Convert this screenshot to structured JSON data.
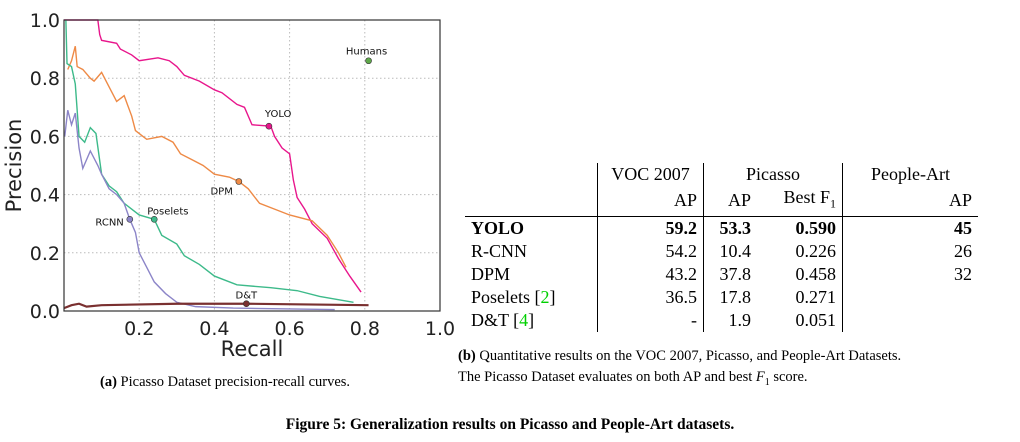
{
  "chart_data": {
    "type": "line",
    "xlabel": "Recall",
    "ylabel": "Precision",
    "xlim": [
      0,
      1.0
    ],
    "ylim": [
      0,
      1.0
    ],
    "xticks": [
      "0.2",
      "0.4",
      "0.6",
      "0.8",
      "1.0"
    ],
    "yticks": [
      "0.0",
      "0.2",
      "0.4",
      "0.6",
      "0.8",
      "1.0"
    ],
    "grid": true,
    "series": [
      {
        "name": "YOLO",
        "color": "#e8168c",
        "marker": [
          0.545,
          0.635
        ],
        "points": [
          [
            0.0,
            1.0
          ],
          [
            0.09,
            1.0
          ],
          [
            0.095,
            0.95
          ],
          [
            0.1,
            0.93
          ],
          [
            0.14,
            0.92
          ],
          [
            0.15,
            0.9
          ],
          [
            0.18,
            0.88
          ],
          [
            0.2,
            0.86
          ],
          [
            0.25,
            0.87
          ],
          [
            0.28,
            0.86
          ],
          [
            0.3,
            0.84
          ],
          [
            0.32,
            0.81
          ],
          [
            0.36,
            0.79
          ],
          [
            0.4,
            0.76
          ],
          [
            0.42,
            0.75
          ],
          [
            0.46,
            0.71
          ],
          [
            0.48,
            0.7
          ],
          [
            0.5,
            0.64
          ],
          [
            0.55,
            0.635
          ],
          [
            0.56,
            0.6
          ],
          [
            0.58,
            0.56
          ],
          [
            0.6,
            0.54
          ],
          [
            0.61,
            0.45
          ],
          [
            0.62,
            0.39
          ],
          [
            0.64,
            0.35
          ],
          [
            0.66,
            0.3
          ],
          [
            0.7,
            0.25
          ],
          [
            0.73,
            0.18
          ],
          [
            0.76,
            0.12
          ],
          [
            0.79,
            0.065
          ]
        ]
      },
      {
        "name": "DPM",
        "color": "#ee8a46",
        "marker": [
          0.465,
          0.445
        ],
        "points": [
          [
            0.01,
            0.83
          ],
          [
            0.02,
            0.86
          ],
          [
            0.03,
            0.91
          ],
          [
            0.035,
            0.84
          ],
          [
            0.05,
            0.83
          ],
          [
            0.07,
            0.8
          ],
          [
            0.08,
            0.79
          ],
          [
            0.1,
            0.82
          ],
          [
            0.12,
            0.77
          ],
          [
            0.14,
            0.72
          ],
          [
            0.16,
            0.74
          ],
          [
            0.18,
            0.67
          ],
          [
            0.19,
            0.62
          ],
          [
            0.21,
            0.6
          ],
          [
            0.22,
            0.59
          ],
          [
            0.26,
            0.6
          ],
          [
            0.29,
            0.58
          ],
          [
            0.31,
            0.54
          ],
          [
            0.34,
            0.52
          ],
          [
            0.37,
            0.5
          ],
          [
            0.4,
            0.47
          ],
          [
            0.44,
            0.46
          ],
          [
            0.465,
            0.445
          ],
          [
            0.49,
            0.42
          ],
          [
            0.52,
            0.37
          ],
          [
            0.56,
            0.35
          ],
          [
            0.6,
            0.33
          ],
          [
            0.66,
            0.31
          ],
          [
            0.7,
            0.26
          ],
          [
            0.73,
            0.2
          ],
          [
            0.75,
            0.15
          ]
        ]
      },
      {
        "name": "Poselets",
        "color": "#3dba8a",
        "marker": [
          0.24,
          0.315
        ],
        "points": [
          [
            0.005,
            1.0
          ],
          [
            0.008,
            0.85
          ],
          [
            0.02,
            0.84
          ],
          [
            0.03,
            0.78
          ],
          [
            0.04,
            0.6
          ],
          [
            0.055,
            0.58
          ],
          [
            0.07,
            0.63
          ],
          [
            0.085,
            0.61
          ],
          [
            0.1,
            0.47
          ],
          [
            0.12,
            0.43
          ],
          [
            0.14,
            0.41
          ],
          [
            0.16,
            0.37
          ],
          [
            0.2,
            0.33
          ],
          [
            0.24,
            0.315
          ],
          [
            0.26,
            0.26
          ],
          [
            0.3,
            0.23
          ],
          [
            0.32,
            0.19
          ],
          [
            0.36,
            0.16
          ],
          [
            0.4,
            0.12
          ],
          [
            0.46,
            0.09
          ],
          [
            0.55,
            0.08
          ],
          [
            0.62,
            0.07
          ],
          [
            0.68,
            0.05
          ],
          [
            0.77,
            0.03
          ]
        ]
      },
      {
        "name": "RCNN",
        "color": "#8c85c8",
        "marker": [
          0.175,
          0.315
        ],
        "points": [
          [
            0.002,
            0.6
          ],
          [
            0.01,
            0.69
          ],
          [
            0.02,
            0.64
          ],
          [
            0.03,
            0.68
          ],
          [
            0.04,
            0.56
          ],
          [
            0.05,
            0.49
          ],
          [
            0.07,
            0.55
          ],
          [
            0.09,
            0.5
          ],
          [
            0.1,
            0.47
          ],
          [
            0.12,
            0.42
          ],
          [
            0.14,
            0.4
          ],
          [
            0.16,
            0.37
          ],
          [
            0.175,
            0.315
          ],
          [
            0.19,
            0.27
          ],
          [
            0.2,
            0.2
          ],
          [
            0.22,
            0.15
          ],
          [
            0.24,
            0.1
          ],
          [
            0.27,
            0.06
          ],
          [
            0.3,
            0.03
          ],
          [
            0.35,
            0.015
          ],
          [
            0.45,
            0.01
          ],
          [
            0.72,
            0.005
          ]
        ]
      },
      {
        "name": "D&T",
        "color": "#7a3030",
        "marker": [
          0.485,
          0.025
        ],
        "points": [
          [
            0.0,
            0.01
          ],
          [
            0.02,
            0.02
          ],
          [
            0.04,
            0.025
          ],
          [
            0.06,
            0.015
          ],
          [
            0.1,
            0.02
          ],
          [
            0.3,
            0.025
          ],
          [
            0.49,
            0.025
          ],
          [
            0.81,
            0.02
          ]
        ]
      }
    ],
    "points": [
      {
        "name": "Humans",
        "color": "#5fa84a",
        "value": [
          0.81,
          0.86
        ]
      }
    ]
  },
  "table": {
    "groups": [
      "VOC 2007",
      "Picasso",
      "People-Art"
    ],
    "subheaders": [
      "AP",
      "AP",
      "Best F",
      "1",
      "AP"
    ],
    "rows": [
      {
        "method": "YOLO",
        "cite": "",
        "voc": "59.2",
        "pap": "53.3",
        "f1": "0.590",
        "art": "45",
        "bold": true
      },
      {
        "method": "R-CNN",
        "cite": "",
        "voc": "54.2",
        "pap": "10.4",
        "f1": "0.226",
        "art": "26"
      },
      {
        "method": "DPM",
        "cite": "",
        "voc": "43.2",
        "pap": "37.8",
        "f1": "0.458",
        "art": "32"
      },
      {
        "method": "Poselets [",
        "cite": "2",
        "voc": "36.5",
        "pap": "17.8",
        "f1": "0.271",
        "art": ""
      },
      {
        "method": "D&T [",
        "cite": "4",
        "voc": "-",
        "pap": "1.9",
        "f1": "0.051",
        "art": ""
      }
    ]
  },
  "captions": {
    "a_label": "(a)",
    "a_text": " Picasso Dataset precision-recall curves.",
    "b_label": "(b)",
    "b_text1": " Quantitative results on the VOC 2007, Picasso, and People-Art Datasets.",
    "b_text2a": "The Picasso Dataset evaluates on both AP and best ",
    "b_text2f": "F",
    "b_text2sub": "1",
    "b_text2b": " score.",
    "figure": "Figure 5: Generalization results on Picasso and People-Art datasets."
  }
}
